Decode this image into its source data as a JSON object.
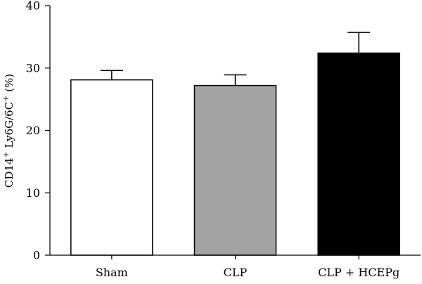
{
  "chart_data": {
    "type": "bar",
    "title": "",
    "xlabel": "",
    "ylabel": {
      "parts": [
        {
          "text": "CD14",
          "sup": false
        },
        {
          "text": "+",
          "sup": true
        },
        {
          "text": " Ly6G/6C",
          "sup": false
        },
        {
          "text": "+",
          "sup": true
        },
        {
          "text": " (%)",
          "sup": false
        }
      ]
    },
    "ylim": [
      0,
      40
    ],
    "yticks": [
      0,
      10,
      20,
      30,
      40
    ],
    "categories": [
      "Sham",
      "CLP",
      "CLP + HCEPg"
    ],
    "values": [
      28.1,
      27.2,
      32.4
    ],
    "errors": [
      1.5,
      1.7,
      3.3
    ],
    "colors": [
      "#ffffff",
      "#a3a3a3",
      "#000000"
    ],
    "bar_stroke": "#000000",
    "grid": false
  }
}
